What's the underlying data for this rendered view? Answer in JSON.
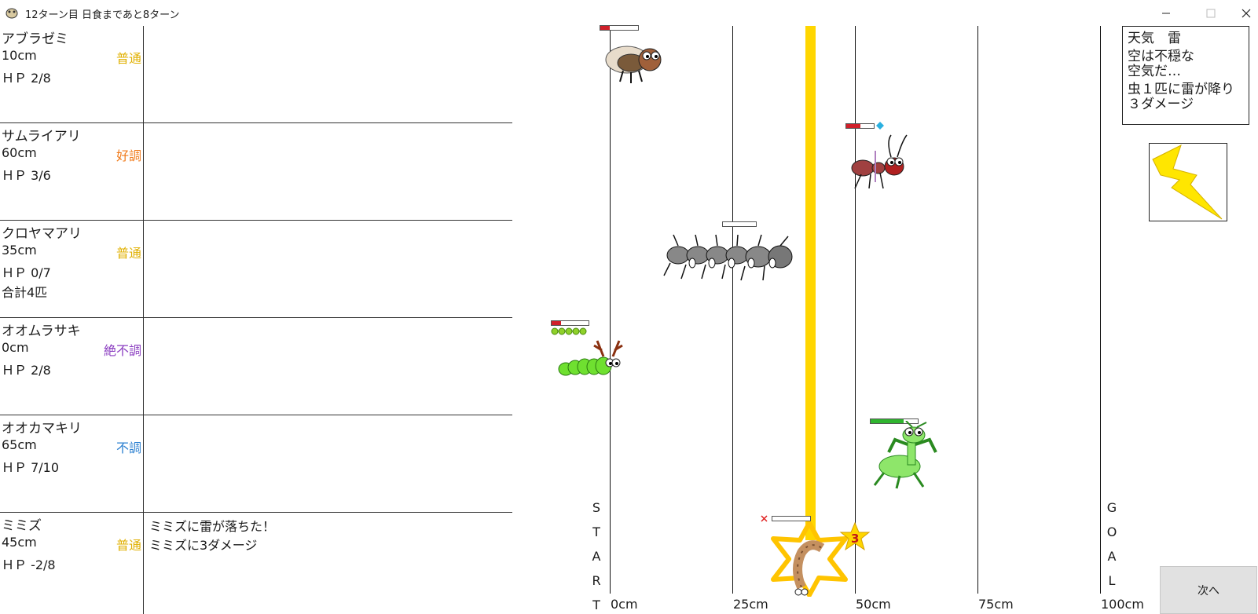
{
  "window": {
    "title": "12ターン目 日食まであと8ターン"
  },
  "insects": [
    {
      "name": "アブラゼミ",
      "distance": "10cm",
      "condition": "普通",
      "condition_color": "#e0b000",
      "hp": "ＨＰ 2/8",
      "extra": "",
      "log": ""
    },
    {
      "name": "サムライアリ",
      "distance": "60cm",
      "condition": "好調",
      "condition_color": "#f07a1a",
      "hp": "ＨＰ 3/6",
      "extra": "",
      "log": ""
    },
    {
      "name": "クロヤマアリ",
      "distance": "35cm",
      "condition": "普通",
      "condition_color": "#e0b000",
      "hp": "ＨＰ 0/7",
      "extra": "合計4匹",
      "log": ""
    },
    {
      "name": "オオムラサキ",
      "distance": "0cm",
      "condition": "絶不調",
      "condition_color": "#8a3cc0",
      "hp": "ＨＰ 2/8",
      "extra": "",
      "log": ""
    },
    {
      "name": "オオカマキリ",
      "distance": "65cm",
      "condition": "不調",
      "condition_color": "#2a7fd0",
      "hp": "ＨＰ 7/10",
      "extra": "",
      "log": ""
    },
    {
      "name": "ミミズ",
      "distance": "45cm",
      "condition": "普通",
      "condition_color": "#e0b000",
      "hp": "ＨＰ -2/8",
      "extra": "",
      "log": "ミミズに雷が落ちた！\nミミズに3ダメージ"
    }
  ],
  "track": {
    "ticks": [
      "0cm",
      "25cm",
      "50cm",
      "75cm",
      "100cm"
    ],
    "start_letters": [
      "S",
      "T",
      "A",
      "R",
      "T"
    ],
    "goal_letters": [
      "G",
      "O",
      "A",
      "L"
    ]
  },
  "weather": {
    "title": "天気　雷",
    "line1": "空は不穏な",
    "line2": "空気だ…",
    "line3": "虫１匹に雷が降り",
    "line4": "３ダメージ"
  },
  "damage_popup": "3",
  "next_button": "次へ",
  "colors": {
    "beam": "#ffd600",
    "hp_low": "#d0202a",
    "hp_high": "#2fb52f"
  }
}
